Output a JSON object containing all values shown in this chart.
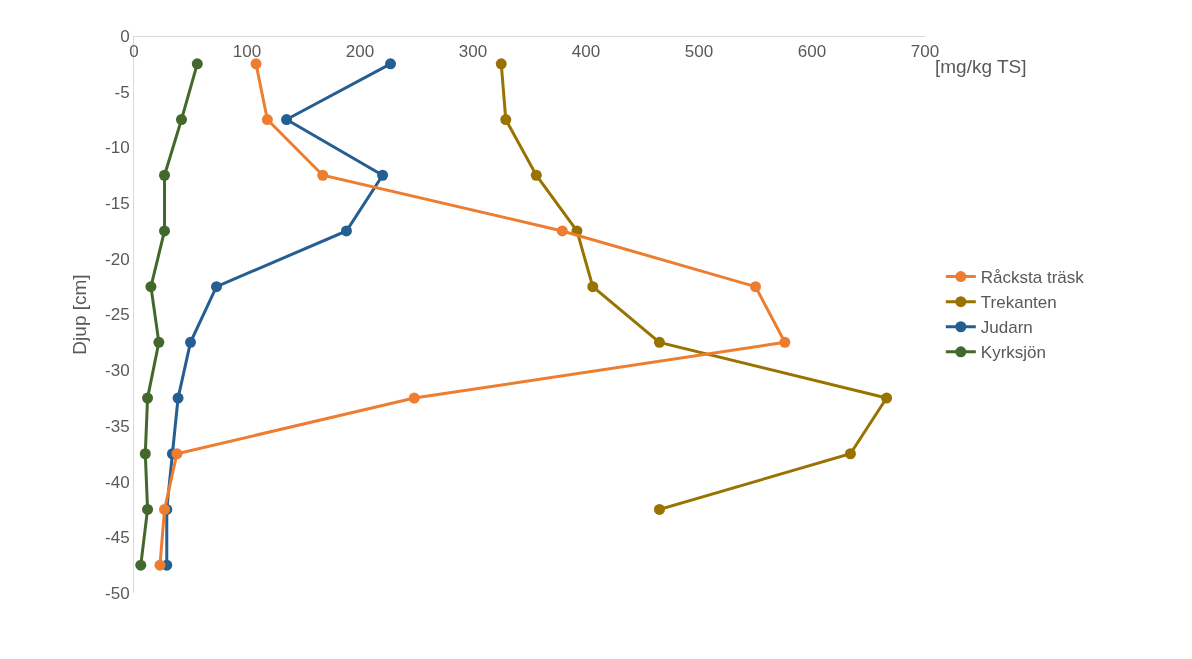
{
  "chart_data": {
    "type": "line",
    "xlabel": "[mg/kg TS]",
    "ylabel": "Djup [cm]",
    "xlim": [
      0,
      700
    ],
    "xticks": [
      0,
      100,
      200,
      300,
      400,
      500,
      600,
      700
    ],
    "ylim": [
      -50,
      0
    ],
    "yticks": [
      0,
      -5,
      -10,
      -15,
      -20,
      -25,
      -30,
      -35,
      -40,
      -45,
      -50
    ],
    "grid": false,
    "legend": "right",
    "marker": "circle",
    "line_style": "solid",
    "series": [
      {
        "name": "Råcksta träsk",
        "color": "#ed7d31",
        "x": [
          108,
          118,
          167,
          379,
          550,
          576,
          248,
          38,
          27,
          23
        ],
        "values": [
          -2.5,
          -7.5,
          -12.5,
          -17.5,
          -22.5,
          -27.5,
          -32.5,
          -37.5,
          -42.5,
          -47.5
        ]
      },
      {
        "name": "Trekanten",
        "color": "#997300",
        "x": [
          325,
          329,
          356,
          392,
          406,
          465,
          666,
          634,
          465
        ],
        "values": [
          -2.5,
          -7.5,
          -12.5,
          -17.5,
          -22.5,
          -27.5,
          -32.5,
          -37.5,
          -42.5
        ]
      },
      {
        "name": "Judarn",
        "color": "#255e91",
        "x": [
          227,
          135,
          220,
          188,
          73,
          50,
          39,
          34,
          29,
          29
        ],
        "values": [
          -2.5,
          -7.5,
          -12.5,
          -17.5,
          -22.5,
          -27.5,
          -32.5,
          -37.5,
          -42.5,
          -47.5
        ]
      },
      {
        "name": "Kyrksjön",
        "color": "#43682b",
        "x": [
          56,
          42,
          27,
          27,
          15,
          22,
          12,
          10,
          12,
          6
        ],
        "values": [
          -2.5,
          -7.5,
          -12.5,
          -17.5,
          -22.5,
          -27.5,
          -32.5,
          -37.5,
          -42.5,
          -47.5
        ]
      }
    ]
  }
}
